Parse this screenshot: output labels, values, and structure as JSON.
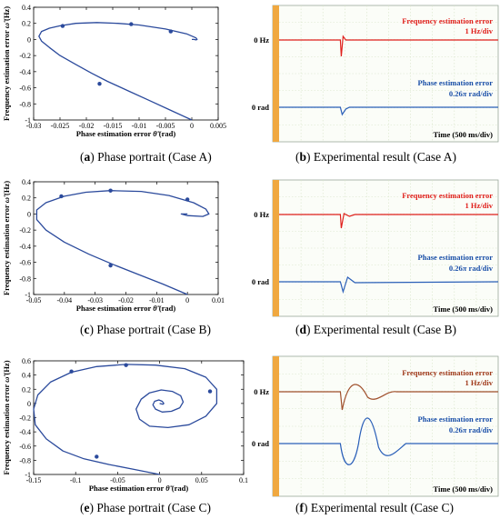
{
  "colors": {
    "curve": "#2b4a9c",
    "osc_red": "#e0201c",
    "osc_red_c": "#a0502c",
    "osc_blue": "#2a5fb8",
    "osc_grid": "#d7e4c8",
    "osc_left_bar": "#f0a840"
  },
  "axes_labels": {
    "ylabel": "Frequency estimation error",
    "xlabel": "Phase estimation error",
    "yunit": "(Hz)",
    "xunit": "(rad)"
  },
  "captions": [
    {
      "letter": "a",
      "text": "Phase portrait (Case A)"
    },
    {
      "letter": "b",
      "text": "Experimental result (Case A)"
    },
    {
      "letter": "c",
      "text": "Phase portrait (Case B)"
    },
    {
      "letter": "d",
      "text": "Experimental result (Case B)"
    },
    {
      "letter": "e",
      "text": "Phase portrait (Case C)"
    },
    {
      "letter": "f",
      "text": "Experimental result (Case C)"
    }
  ],
  "scope_labels": {
    "freq_title": "Frequency estimation error",
    "freq_scale": "1 Hz/div",
    "phase_title": "Phase estimation error",
    "phase_scale_num": "0.26",
    "phase_scale_unit": "rad/div",
    "time": "Time (500 ms/div)",
    "zero_hz": "0 Hz",
    "zero_rad": "0 rad"
  },
  "chart_data": [
    {
      "type": "line",
      "id": "a",
      "xlim": [
        -0.03,
        0.005
      ],
      "ylim": [
        -1,
        0.4
      ],
      "xticks": [
        "-0.03",
        "-0.025",
        "-0.02",
        "-0.015",
        "-0.01",
        "-0.005",
        "0",
        "0.005"
      ],
      "yticks": [
        "0.4",
        "0.2",
        "0",
        "-0.2",
        "-0.4",
        "-0.6",
        "-0.8",
        "-1"
      ],
      "x": [
        0,
        -0.004,
        -0.008,
        -0.012,
        -0.016,
        -0.019,
        -0.022,
        -0.025,
        -0.027,
        -0.0285,
        -0.029,
        -0.0285,
        -0.027,
        -0.025,
        -0.022,
        -0.018,
        -0.014,
        -0.01,
        -0.005,
        -0.001,
        0.0008,
        0.001,
        0.0008,
        0.0004,
        0.0
      ],
      "y": [
        -1,
        -0.88,
        -0.76,
        -0.64,
        -0.52,
        -0.42,
        -0.31,
        -0.2,
        -0.1,
        -0.02,
        0.04,
        0.1,
        0.14,
        0.17,
        0.2,
        0.21,
        0.2,
        0.18,
        0.13,
        0.07,
        0.02,
        0.0,
        -0.005,
        0.0,
        0.0
      ],
      "arrows": [
        [
          -0.0175,
          -0.55
        ],
        [
          -0.0245,
          0.168
        ],
        [
          -0.0115,
          0.19
        ],
        [
          -0.004,
          0.1
        ]
      ]
    },
    {
      "type": "line",
      "id": "c",
      "xlim": [
        -0.05,
        0.01
      ],
      "ylim": [
        -1,
        0.4
      ],
      "xticks": [
        "-0.05",
        "-0.04",
        "-0.03",
        "-0.02",
        "-0.01",
        "0",
        "0.01"
      ],
      "yticks": [
        "0.4",
        "0.2",
        "0",
        "-0.2",
        "-0.4",
        "-0.6",
        "-0.8",
        "-1"
      ],
      "x": [
        0,
        -0.008,
        -0.016,
        -0.024,
        -0.032,
        -0.04,
        -0.046,
        -0.049,
        -0.049,
        -0.046,
        -0.04,
        -0.033,
        -0.025,
        -0.015,
        -0.006,
        0.002,
        0.006,
        0.007,
        0.005,
        0.0,
        -0.002,
        -0.001,
        0.0
      ],
      "y": [
        -1,
        -0.87,
        -0.75,
        -0.63,
        -0.5,
        -0.35,
        -0.2,
        -0.07,
        0.05,
        0.14,
        0.22,
        0.27,
        0.29,
        0.28,
        0.23,
        0.14,
        0.06,
        0.0,
        -0.03,
        -0.02,
        0.0,
        0.0,
        0.0
      ],
      "arrows": [
        [
          -0.025,
          -0.64
        ],
        [
          -0.041,
          0.22
        ],
        [
          -0.025,
          0.29
        ],
        [
          0.0,
          0.18
        ]
      ]
    },
    {
      "type": "line",
      "id": "e",
      "xlim": [
        -0.15,
        0.1
      ],
      "ylim": [
        -1,
        0.6
      ],
      "xticks": [
        "-0.15",
        "-0.1",
        "-0.05",
        "0",
        "0.05",
        "0.1"
      ],
      "yticks": [
        "0.6",
        "0.4",
        "0.2",
        "0",
        "-0.2",
        "-0.4",
        "-0.6",
        "-0.8",
        "-1"
      ],
      "x": [
        0,
        -0.03,
        -0.06,
        -0.09,
        -0.115,
        -0.135,
        -0.148,
        -0.15,
        -0.145,
        -0.13,
        -0.105,
        -0.075,
        -0.04,
        -0.005,
        0.03,
        0.055,
        0.068,
        0.068,
        0.055,
        0.035,
        0.01,
        -0.012,
        -0.024,
        -0.028,
        -0.022,
        -0.012,
        0.002,
        0.015,
        0.025,
        0.028,
        0.024,
        0.014,
        0.003,
        -0.005,
        -0.008,
        -0.006,
        -0.001,
        0.003,
        0.005,
        0.004,
        0.0
      ],
      "y": [
        -1,
        -0.93,
        -0.86,
        -0.78,
        -0.67,
        -0.5,
        -0.3,
        -0.08,
        0.12,
        0.3,
        0.44,
        0.52,
        0.55,
        0.54,
        0.49,
        0.37,
        0.2,
        0.0,
        -0.18,
        -0.3,
        -0.34,
        -0.32,
        -0.22,
        -0.08,
        0.06,
        0.15,
        0.19,
        0.17,
        0.11,
        0.02,
        -0.06,
        -0.11,
        -0.12,
        -0.08,
        -0.02,
        0.03,
        0.05,
        0.03,
        0.0,
        -0.01,
        0.0
      ],
      "arrows": [
        [
          -0.075,
          -0.75
        ],
        [
          -0.105,
          0.45
        ],
        [
          -0.04,
          0.54
        ],
        [
          0.06,
          0.17
        ]
      ]
    }
  ]
}
